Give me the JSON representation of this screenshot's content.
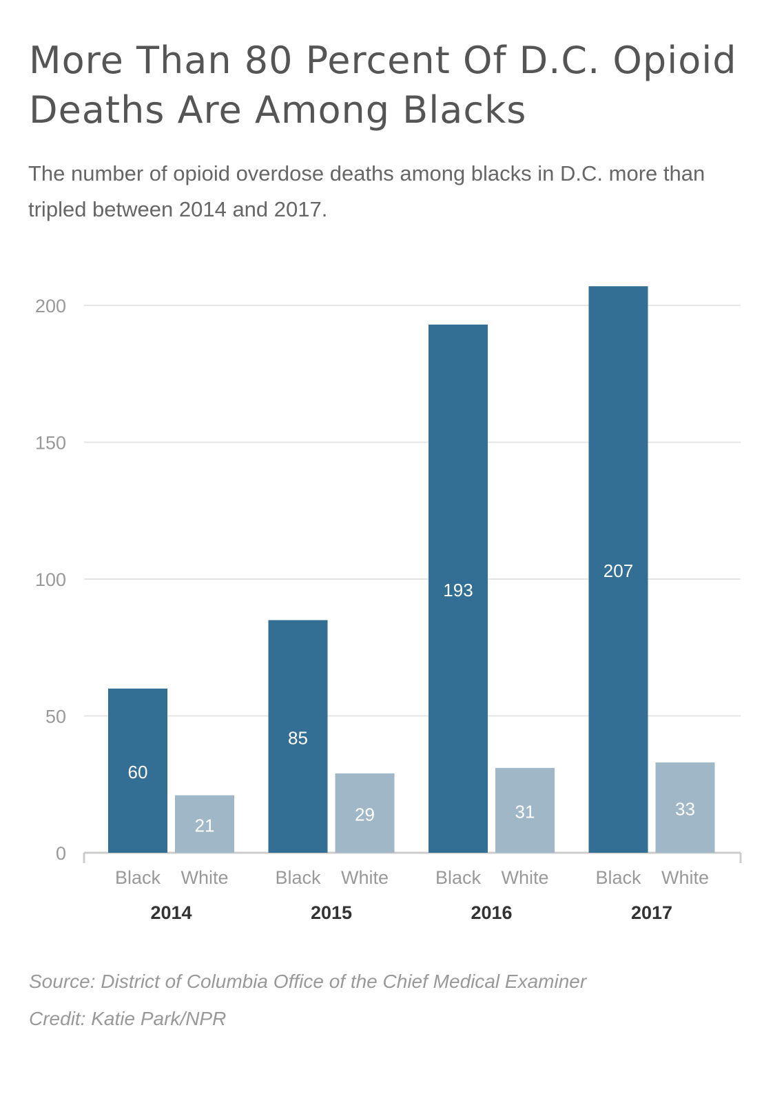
{
  "title": "More Than 80 Percent Of D.C. Opioid Deaths Are Among Blacks",
  "subtitle": "The number of opioid overdose deaths among blacks in D.C. more than tripled between 2014 and 2017.",
  "source": "Source: District of Columbia Office of the Chief Medical Examiner",
  "credit": "Credit: Katie Park/NPR",
  "colors": {
    "black_bar": "#336f94",
    "white_bar": "#a0b7c7",
    "grid": "#e6e6e6",
    "axis": "#cccccc",
    "tick_text": "#999999",
    "year_text": "#333333",
    "label_text": "#ffffff"
  },
  "chart_data": {
    "type": "bar",
    "title": "",
    "xlabel": "",
    "ylabel": "",
    "ylim": [
      0,
      210
    ],
    "yticks": [
      0,
      50,
      100,
      150,
      200
    ],
    "grid": true,
    "categories": [
      "2014",
      "2015",
      "2016",
      "2017"
    ],
    "series": [
      {
        "name": "Black",
        "values": [
          60,
          85,
          193,
          207
        ]
      },
      {
        "name": "White",
        "values": [
          21,
          29,
          31,
          33
        ]
      }
    ]
  }
}
